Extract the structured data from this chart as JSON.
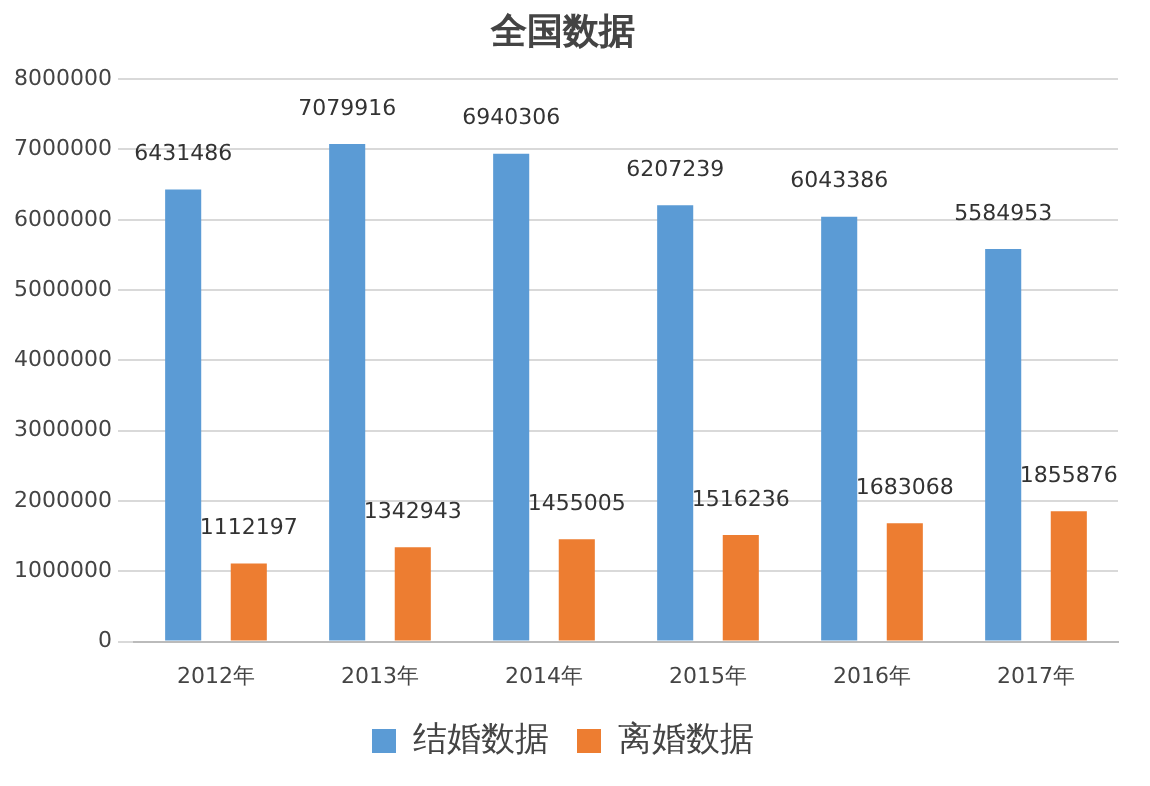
{
  "chart_data": {
    "type": "bar",
    "title": "全国数据",
    "categories": [
      "2012年",
      "2013年",
      "2014年",
      "2015年",
      "2016年",
      "2017年"
    ],
    "series": [
      {
        "name": "结婚数据",
        "color": "#5b9bd5",
        "values": [
          6431486,
          7079916,
          6940306,
          6207239,
          6043386,
          5584953
        ]
      },
      {
        "name": "离婚数据",
        "color": "#ed7d31",
        "values": [
          1112197,
          1342943,
          1455005,
          1516236,
          1683068,
          1855876
        ]
      }
    ],
    "ylim": [
      0,
      8000000
    ],
    "yticks": [
      0,
      1000000,
      2000000,
      3000000,
      4000000,
      5000000,
      6000000,
      7000000,
      8000000
    ],
    "grid": "y",
    "legend": "bottom",
    "data_labels": true
  }
}
